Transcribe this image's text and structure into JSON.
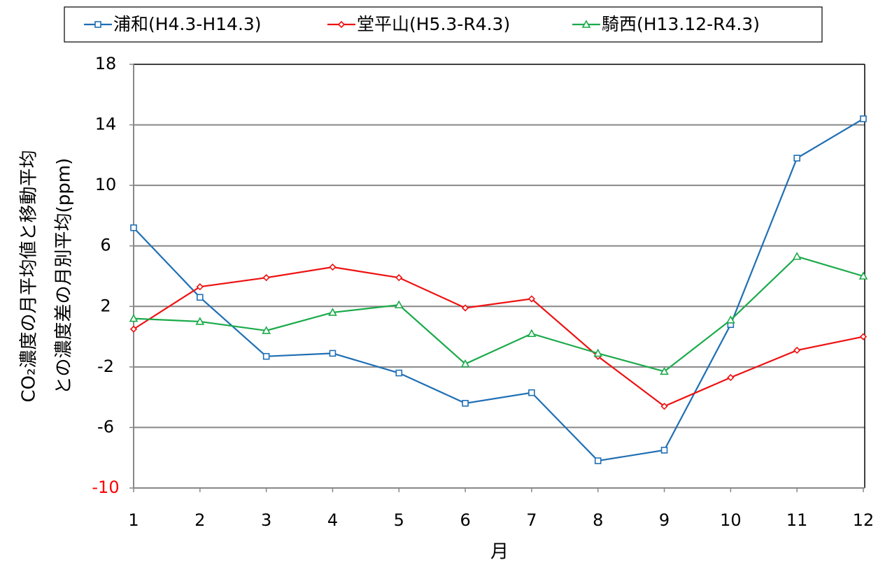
{
  "chart_data": {
    "type": "line",
    "y_label": [
      "CO₂濃度の月平均値と移動平均",
      "との濃度差の月別平均(ppm)"
    ],
    "x_label": "月",
    "x": [
      1,
      2,
      3,
      4,
      5,
      6,
      7,
      8,
      9,
      10,
      11,
      12
    ],
    "xlim": [
      1,
      12
    ],
    "xticks": [
      1,
      2,
      3,
      4,
      5,
      6,
      7,
      8,
      9,
      10,
      11,
      12
    ],
    "ylim": [
      -10,
      18
    ],
    "yticks": [
      18,
      14,
      10,
      6,
      2,
      -2,
      -6,
      -10
    ],
    "ytick_label_colors": [
      "#000000",
      "#000000",
      "#000000",
      "#000000",
      "#000000",
      "#000000",
      "#000000",
      "#ff0000"
    ],
    "grid": true,
    "legend": "top",
    "series": [
      {
        "name": "浦和(H4.3-H14.3)",
        "color": "#1f6fb4",
        "marker": "square",
        "values": [
          7.2,
          2.6,
          -1.3,
          -1.1,
          -2.4,
          -4.4,
          -3.7,
          -8.2,
          -7.5,
          0.8,
          11.8,
          14.4
        ]
      },
      {
        "name": "堂平山(H5.3-R4.3)",
        "color": "#ee1111",
        "marker": "diamond",
        "values": [
          0.5,
          3.3,
          3.9,
          4.6,
          3.9,
          1.9,
          2.5,
          -1.3,
          -4.6,
          -2.7,
          -0.9,
          0.0
        ]
      },
      {
        "name": "騎西(H13.12-R4.3)",
        "color": "#1aaa4a",
        "marker": "triangle",
        "values": [
          1.2,
          1.0,
          0.4,
          1.6,
          2.1,
          -1.8,
          0.2,
          -1.1,
          -2.3,
          1.1,
          5.3,
          4.0
        ]
      }
    ]
  }
}
